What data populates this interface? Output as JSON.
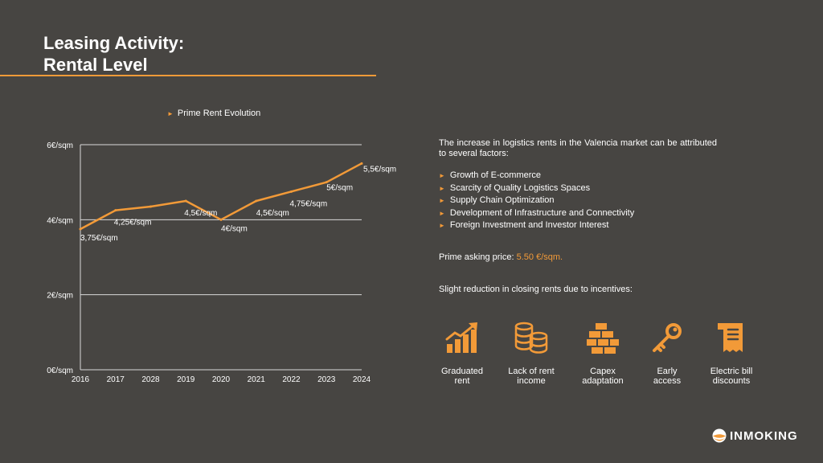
{
  "title": {
    "line1": "Leasing Activity:",
    "line2": "Rental Level"
  },
  "colors": {
    "accent": "#f29a38",
    "background": "#474542",
    "text": "#ffffff"
  },
  "chart_data": {
    "type": "line",
    "series": [
      {
        "name": "Prime Rent Evolution",
        "x": [
          "2016",
          "2017",
          "2028",
          "2019",
          "2020",
          "2021",
          "2022",
          "2023",
          "2024"
        ],
        "values": [
          3.75,
          4.25,
          4.35,
          4.5,
          4.0,
          4.5,
          4.75,
          5.0,
          5.5
        ],
        "point_labels": [
          "3,75€/sqm",
          "4,25€/sqm",
          "",
          "4,5€/sqm",
          "4€/sqm",
          "4,5€/sqm",
          "4,75€/sqm",
          "5€/sqm",
          "5,5€/sqm"
        ]
      }
    ],
    "yticks": [
      0,
      2,
      4,
      6
    ],
    "ytick_labels": [
      "0€/sqm",
      "2€/sqm",
      "4€/sqm",
      "6€/sqm"
    ],
    "ylim": [
      0,
      6
    ],
    "grid": true,
    "legend": "top"
  },
  "text": {
    "intro": "The increase in logistics rents in the Valencia market can be attributed to several factors:",
    "factors": [
      "Growth of E-commerce",
      "Scarcity of Quality Logistics Spaces",
      "Supply Chain Optimization",
      "Development of Infrastructure and Connectivity",
      "Foreign Investment and Investor Interest"
    ],
    "price_label": "Prime asking price:",
    "price_value": "5.50 €/sqm.",
    "reduction": "Slight reduction in closing rents due to incentives:"
  },
  "incentives": [
    {
      "icon": "growth-chart-icon",
      "line1": "Graduated",
      "line2": "rent"
    },
    {
      "icon": "coins-icon",
      "line1": "Lack of rent",
      "line2": "income"
    },
    {
      "icon": "bricks-icon",
      "line1": "Capex",
      "line2": "adaptation"
    },
    {
      "icon": "key-icon",
      "line1": "Early",
      "line2": "access"
    },
    {
      "icon": "bill-icon",
      "line1": "Electric bill",
      "line2": "discounts"
    }
  ],
  "logo": {
    "text": "INMOKING"
  }
}
